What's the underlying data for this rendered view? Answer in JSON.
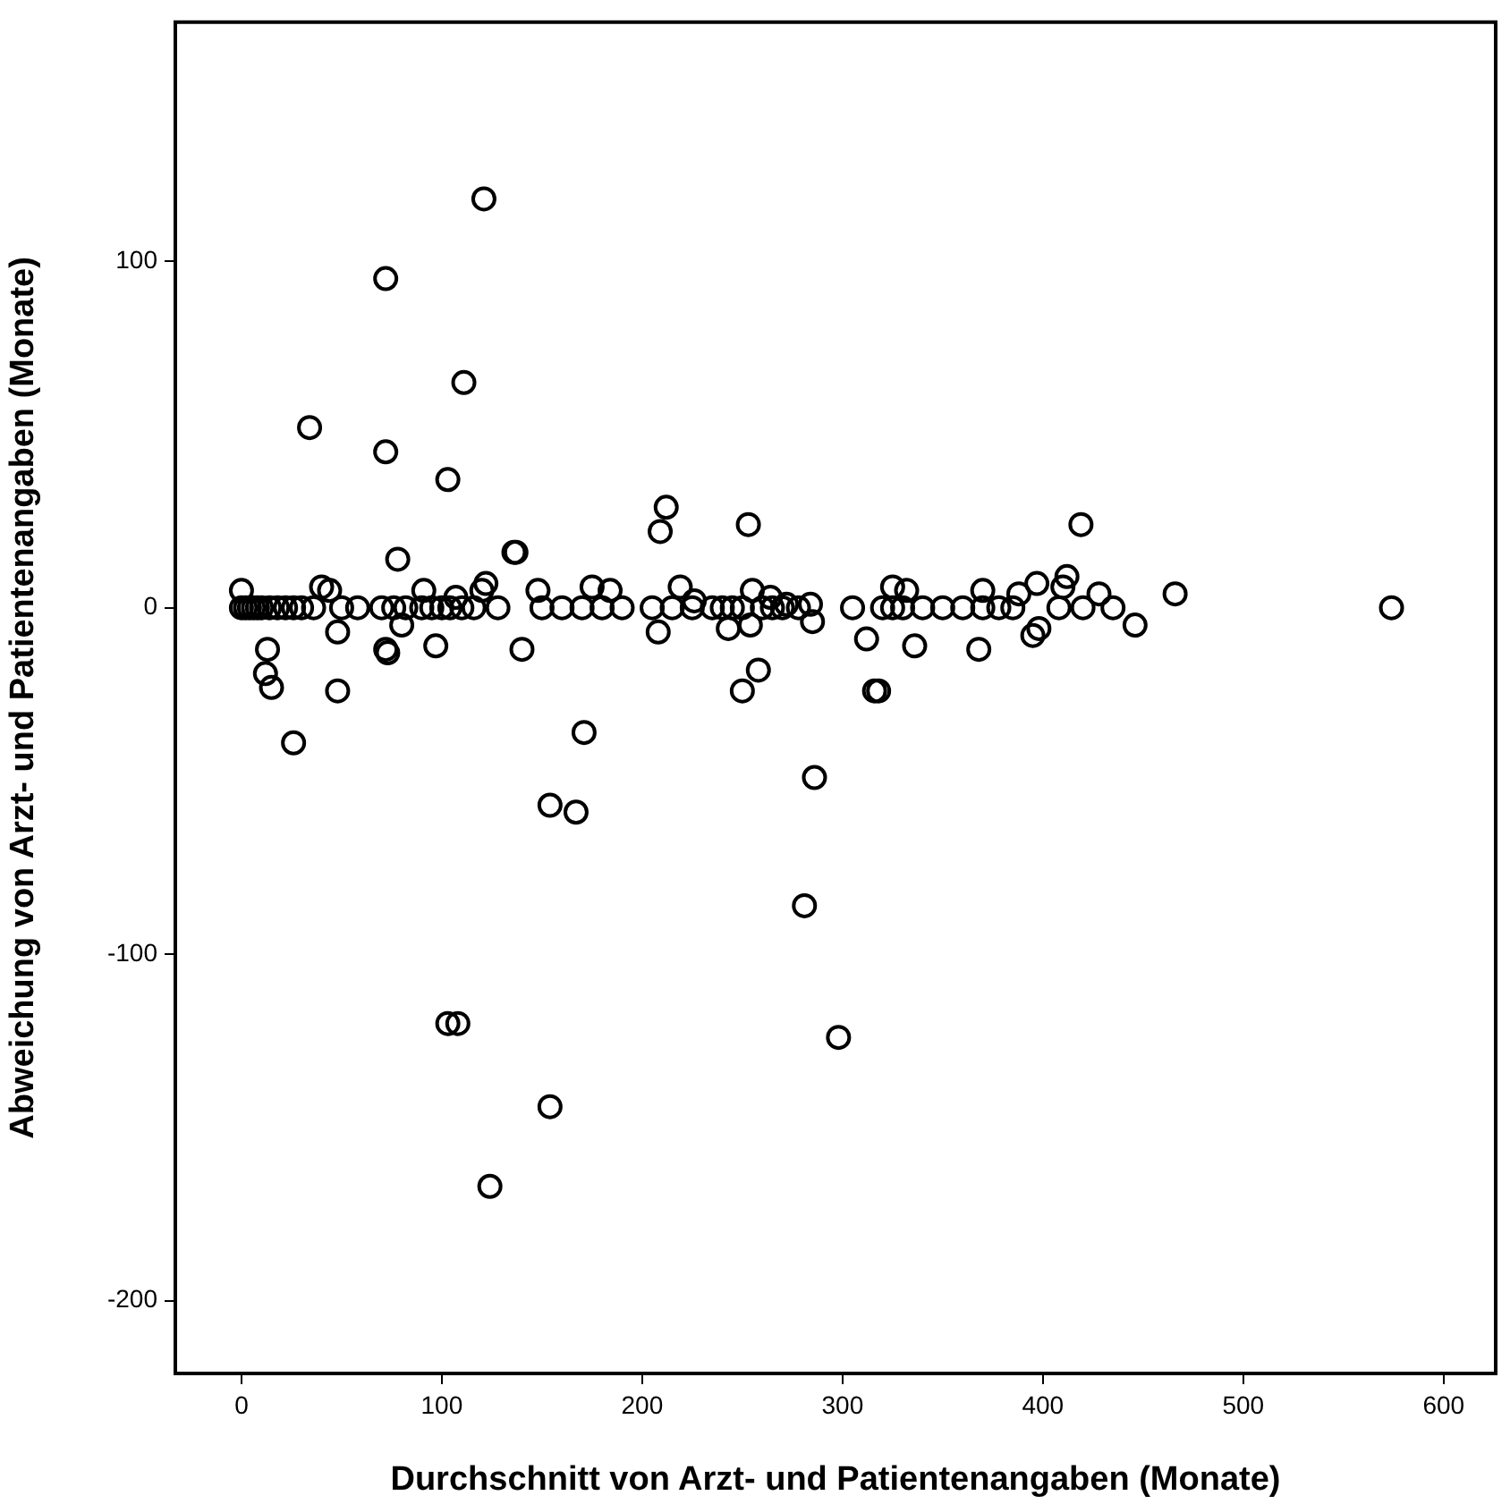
{
  "chart_data": {
    "type": "scatter",
    "xlabel": "Durchschnitt von Arzt- und Patientenangaben (Monate)",
    "ylabel": "Abweichung von Arzt- und Patientenangaben (Monate)",
    "xlim": [
      -33,
      626
    ],
    "ylim": [
      -221,
      169
    ],
    "xticks": [
      0,
      100,
      200,
      300,
      400,
      500,
      600
    ],
    "yticks": [
      -200,
      -100,
      0,
      100
    ],
    "grid": false,
    "legend": false,
    "marker": "circle",
    "series": [
      {
        "color": "#000000",
        "x": [
          121,
          72,
          111,
          34,
          72,
          103,
          78,
          137,
          209,
          212,
          253,
          419,
          13,
          12,
          15,
          48,
          48,
          26,
          72,
          73,
          97,
          140,
          171,
          154,
          167,
          250,
          258,
          286,
          281,
          298,
          103,
          108,
          154,
          124,
          316,
          466,
          574,
          446,
          395,
          398,
          368,
          336,
          312,
          318,
          412,
          410,
          397,
          388,
          428,
          370,
          325,
          332,
          284,
          285,
          243,
          254,
          255,
          264,
          272,
          0,
          40,
          44,
          80,
          91,
          107,
          122,
          120,
          136,
          148,
          175,
          184,
          219,
          226,
          208,
          0,
          2,
          4,
          6,
          8,
          10,
          14,
          18,
          22,
          26,
          30,
          36,
          50,
          58,
          70,
          76,
          82,
          90,
          95,
          100,
          104,
          110,
          116,
          128,
          150,
          160,
          170,
          180,
          190,
          205,
          215,
          225,
          235,
          240,
          245,
          250,
          260,
          265,
          270,
          278,
          305,
          320,
          325,
          330,
          340,
          350,
          360,
          370,
          378,
          385,
          408,
          420,
          435
        ],
        "values": [
          118,
          95,
          65,
          52,
          45,
          37,
          14,
          16,
          22,
          29,
          24,
          24,
          -12,
          -19,
          -23,
          -24,
          -7,
          -39,
          -12,
          -13,
          -11,
          -12,
          -36,
          -57,
          -59,
          -24,
          -18,
          -49,
          -86,
          -124,
          -120,
          -120,
          -144,
          -167,
          -24,
          4,
          0,
          -5,
          -8,
          -6,
          -12,
          -11,
          -9,
          -24,
          9,
          6,
          7,
          4,
          4,
          5,
          6,
          5,
          1,
          -4,
          -6,
          -5,
          5,
          3,
          1,
          5,
          6,
          5,
          -5,
          5,
          3,
          7,
          5,
          16,
          5,
          6,
          5,
          6,
          2,
          -7,
          0,
          0,
          0,
          0,
          0,
          0,
          0,
          0,
          0,
          0,
          0,
          0,
          0,
          0,
          0,
          0,
          0,
          0,
          0,
          0,
          0,
          0,
          0,
          0,
          0,
          0,
          0,
          0,
          0,
          0,
          0,
          0,
          0,
          0,
          0,
          0,
          0,
          0,
          0,
          0,
          0,
          0,
          0,
          0,
          0,
          0,
          0,
          0,
          0,
          0,
          0,
          0,
          0
        ]
      }
    ]
  }
}
